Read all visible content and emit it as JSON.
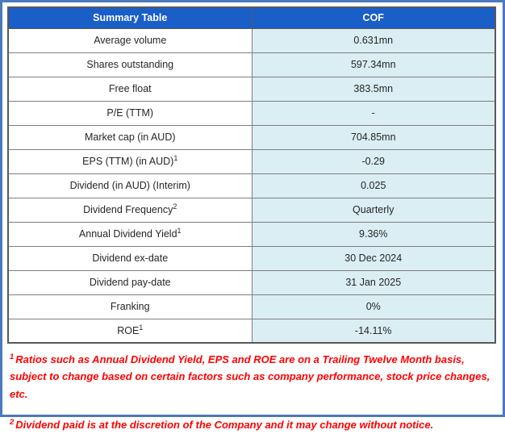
{
  "table": {
    "header": {
      "left": "Summary Table",
      "right": "COF"
    },
    "header_bg": "#1a5ec8",
    "value_bg": "#daeef3",
    "rows": [
      {
        "label": "Average volume",
        "sup": "",
        "value": "0.631mn"
      },
      {
        "label": "Shares outstanding",
        "sup": "",
        "value": "597.34mn"
      },
      {
        "label": "Free float",
        "sup": "",
        "value": "383.5mn"
      },
      {
        "label": "P/E (TTM)",
        "sup": "",
        "value": "-"
      },
      {
        "label": "Market cap (in AUD)",
        "sup": "",
        "value": "704.85mn"
      },
      {
        "label": "EPS (TTM) (in AUD)",
        "sup": "1",
        "value": "-0.29"
      },
      {
        "label": "Dividend (in AUD) (Interim)",
        "sup": "",
        "value": "0.025"
      },
      {
        "label": "Dividend Frequency",
        "sup": "2",
        "value": "Quarterly"
      },
      {
        "label": "Annual Dividend Yield",
        "sup": "1",
        "value": "9.36%"
      },
      {
        "label": "Dividend ex-date",
        "sup": "",
        "value": "30 Dec 2024"
      },
      {
        "label": "Dividend pay-date",
        "sup": "",
        "value": "31 Jan 2025"
      },
      {
        "label": "Franking",
        "sup": "",
        "value": "0%"
      },
      {
        "label": "ROE",
        "sup": "1",
        "value": "-14.11%"
      }
    ]
  },
  "footnotes": {
    "color": "#ff0000",
    "items": [
      {
        "sup": "1",
        "text": "Ratios such as Annual Dividend Yield, EPS and ROE are on a Trailing Twelve Month basis, subject to change based on certain factors such as company performance, stock price changes, etc."
      },
      {
        "sup": "2",
        "text": "Dividend paid is at the discretion of the Company and it may change without notice."
      }
    ]
  }
}
